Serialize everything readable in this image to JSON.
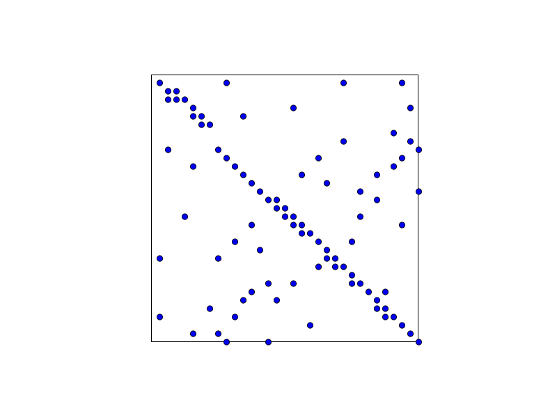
{
  "chart_data": {
    "type": "scatter",
    "title": "",
    "xlabel": "",
    "ylabel": "",
    "axes": "hidden",
    "grid": false,
    "matrix_size": 32,
    "marker_color": "#0000ee",
    "marker_edge_color": "#000000",
    "frame_color": "#000000",
    "points": [
      [
        0,
        0
      ],
      [
        1,
        1
      ],
      [
        2,
        1
      ],
      [
        1,
        2
      ],
      [
        2,
        2
      ],
      [
        3,
        2
      ],
      [
        4,
        3
      ],
      [
        4,
        4
      ],
      [
        5,
        4
      ],
      [
        5,
        5
      ],
      [
        6,
        5
      ],
      [
        7,
        8
      ],
      [
        8,
        9
      ],
      [
        9,
        10
      ],
      [
        10,
        11
      ],
      [
        11,
        12
      ],
      [
        12,
        13
      ],
      [
        13,
        14
      ],
      [
        14,
        14
      ],
      [
        14,
        15
      ],
      [
        15,
        15
      ],
      [
        15,
        16
      ],
      [
        16,
        16
      ],
      [
        16,
        17
      ],
      [
        17,
        17
      ],
      [
        17,
        18
      ],
      [
        18,
        18
      ],
      [
        19,
        19
      ],
      [
        20,
        20
      ],
      [
        20,
        21
      ],
      [
        21,
        21
      ],
      [
        21,
        22
      ],
      [
        22,
        22
      ],
      [
        23,
        23
      ],
      [
        23,
        24
      ],
      [
        24,
        24
      ],
      [
        25,
        25
      ],
      [
        26,
        26
      ],
      [
        26,
        27
      ],
      [
        27,
        27
      ],
      [
        27,
        28
      ],
      [
        28,
        28
      ],
      [
        29,
        29
      ],
      [
        30,
        30
      ],
      [
        31,
        31
      ],
      [
        8,
        0
      ],
      [
        22,
        0
      ],
      [
        29,
        0
      ],
      [
        16,
        3
      ],
      [
        10,
        4
      ],
      [
        30,
        3
      ],
      [
        28,
        6
      ],
      [
        22,
        7
      ],
      [
        30,
        7
      ],
      [
        31,
        8
      ],
      [
        1,
        8
      ],
      [
        19,
        9
      ],
      [
        29,
        9
      ],
      [
        28,
        10
      ],
      [
        4,
        10
      ],
      [
        17,
        11
      ],
      [
        26,
        11
      ],
      [
        20,
        12
      ],
      [
        24,
        13
      ],
      [
        31,
        13
      ],
      [
        26,
        14
      ],
      [
        3,
        16
      ],
      [
        24,
        16
      ],
      [
        11,
        17
      ],
      [
        29,
        17
      ],
      [
        9,
        19
      ],
      [
        23,
        19
      ],
      [
        12,
        20
      ],
      [
        0,
        21
      ],
      [
        7,
        21
      ],
      [
        19,
        22
      ],
      [
        13,
        24
      ],
      [
        16,
        24
      ],
      [
        11,
        25
      ],
      [
        27,
        25
      ],
      [
        10,
        26
      ],
      [
        14,
        26
      ],
      [
        6,
        27
      ],
      [
        9,
        28
      ],
      [
        0,
        28
      ],
      [
        18,
        29
      ],
      [
        4,
        30
      ],
      [
        7,
        30
      ],
      [
        8,
        31
      ],
      [
        13,
        31
      ]
    ]
  }
}
